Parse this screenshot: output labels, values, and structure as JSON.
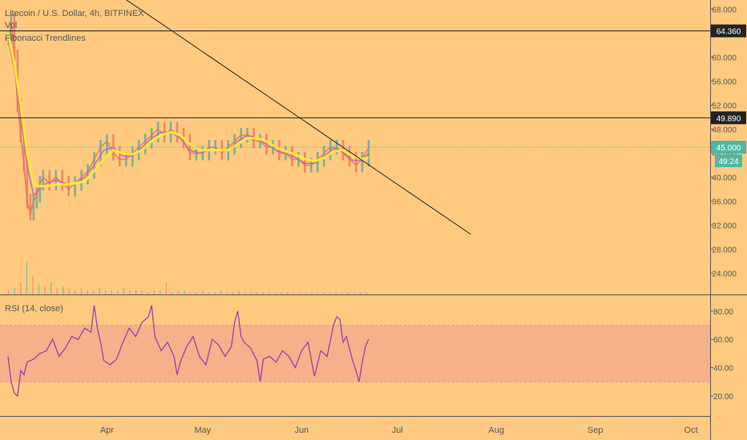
{
  "header": {
    "symbol_line": "Litecoin / U.S. Dollar, 4h, BITFINEX",
    "indicator_vol": "Vol",
    "indicator_fib": "Fibonacci Trendlines"
  },
  "colors": {
    "background": "#FFCA80",
    "candle_up": "#4FA8A0",
    "candle_down": "#E8735E",
    "ma_fast": "#C66BA6",
    "ma_slow": "#FFE838",
    "rsi_line": "#9C3FA8",
    "rsi_band": "#F6B18A",
    "last_price_label": "#4FB7A3",
    "horizontal_line_label": "#222222"
  },
  "chart_data": [
    {
      "type": "line",
      "name": "price",
      "title": "Litecoin / U.S. Dollar, 4h, BITFINEX",
      "x_axis_labels": [
        "Apr",
        "May",
        "Jun",
        "Jul",
        "Aug",
        "Sep",
        "Oct"
      ],
      "y_axis_ticks": [
        "68.000",
        "64.000",
        "60.000",
        "56.000",
        "52.000",
        "48.000",
        "44.000",
        "40.000",
        "36.000",
        "32.000",
        "28.000",
        "24.000"
      ],
      "ylim": [
        20.5,
        69.5
      ],
      "x_units": "days since Mar 1",
      "xlim": [
        0,
        220
      ],
      "price_points": [
        [
          0,
          62
        ],
        [
          1,
          66
        ],
        [
          2,
          60
        ],
        [
          3,
          52
        ],
        [
          4,
          47
        ],
        [
          5,
          42
        ],
        [
          6,
          36
        ],
        [
          7,
          34
        ],
        [
          8,
          36
        ],
        [
          9,
          37
        ],
        [
          10,
          39
        ],
        [
          11,
          40
        ],
        [
          13,
          39
        ],
        [
          15,
          40
        ],
        [
          17,
          39
        ],
        [
          19,
          38
        ],
        [
          21,
          39
        ],
        [
          23,
          40
        ],
        [
          25,
          41
        ],
        [
          27,
          43
        ],
        [
          29,
          45
        ],
        [
          31,
          46
        ],
        [
          33,
          44
        ],
        [
          35,
          43
        ],
        [
          37,
          43
        ],
        [
          39,
          44
        ],
        [
          41,
          45
        ],
        [
          43,
          46
        ],
        [
          45,
          47
        ],
        [
          47,
          48
        ],
        [
          49,
          47
        ],
        [
          51,
          48
        ],
        [
          53,
          47
        ],
        [
          55,
          46
        ],
        [
          57,
          44
        ],
        [
          59,
          44
        ],
        [
          61,
          44
        ],
        [
          63,
          45
        ],
        [
          65,
          45
        ],
        [
          67,
          44
        ],
        [
          69,
          45
        ],
        [
          71,
          46
        ],
        [
          73,
          47
        ],
        [
          75,
          47
        ],
        [
          77,
          46
        ],
        [
          79,
          46
        ],
        [
          81,
          45
        ],
        [
          83,
          45
        ],
        [
          85,
          44
        ],
        [
          87,
          44
        ],
        [
          89,
          43
        ],
        [
          91,
          43
        ],
        [
          93,
          42
        ],
        [
          95,
          42
        ],
        [
          97,
          43
        ],
        [
          99,
          44
        ],
        [
          101,
          45
        ],
        [
          103,
          45
        ],
        [
          105,
          44
        ],
        [
          107,
          43
        ],
        [
          109,
          42
        ],
        [
          111,
          43
        ],
        [
          113,
          45
        ]
      ],
      "ma_fast_points": [
        [
          0,
          63
        ],
        [
          2,
          58
        ],
        [
          4,
          50
        ],
        [
          6,
          42
        ],
        [
          8,
          37
        ],
        [
          10,
          38
        ],
        [
          12,
          39
        ],
        [
          15,
          39.5
        ],
        [
          18,
          39
        ],
        [
          21,
          39
        ],
        [
          24,
          40
        ],
        [
          27,
          42
        ],
        [
          30,
          44.5
        ],
        [
          33,
          45
        ],
        [
          36,
          43.5
        ],
        [
          39,
          43.5
        ],
        [
          42,
          45
        ],
        [
          45,
          46.5
        ],
        [
          48,
          47.5
        ],
        [
          51,
          47.5
        ],
        [
          54,
          46.5
        ],
        [
          57,
          44.5
        ],
        [
          60,
          44
        ],
        [
          63,
          44.5
        ],
        [
          66,
          44.5
        ],
        [
          69,
          44.5
        ],
        [
          72,
          46
        ],
        [
          75,
          47
        ],
        [
          78,
          46.5
        ],
        [
          81,
          45.5
        ],
        [
          84,
          44.5
        ],
        [
          87,
          44
        ],
        [
          90,
          43.3
        ],
        [
          93,
          42.3
        ],
        [
          96,
          42.3
        ],
        [
          99,
          43.5
        ],
        [
          102,
          44.8
        ],
        [
          105,
          44.2
        ],
        [
          108,
          42.8
        ],
        [
          111,
          42.8
        ],
        [
          113,
          44
        ]
      ],
      "ma_slow_points": [
        [
          0,
          64
        ],
        [
          2,
          59
        ],
        [
          4,
          52
        ],
        [
          6,
          44
        ],
        [
          8,
          39
        ],
        [
          10,
          38.5
        ],
        [
          12,
          38.5
        ],
        [
          15,
          38.8
        ],
        [
          18,
          38.8
        ],
        [
          21,
          39
        ],
        [
          24,
          39.3
        ],
        [
          27,
          41
        ],
        [
          30,
          43
        ],
        [
          33,
          44.5
        ],
        [
          36,
          44
        ],
        [
          39,
          43.8
        ],
        [
          42,
          44.5
        ],
        [
          45,
          46
        ],
        [
          48,
          47
        ],
        [
          51,
          47.5
        ],
        [
          54,
          47
        ],
        [
          57,
          45.5
        ],
        [
          60,
          44.5
        ],
        [
          63,
          44.5
        ],
        [
          66,
          44.5
        ],
        [
          69,
          44.5
        ],
        [
          72,
          45.5
        ],
        [
          75,
          46.5
        ],
        [
          78,
          46.5
        ],
        [
          81,
          46
        ],
        [
          84,
          45
        ],
        [
          87,
          44.3
        ],
        [
          90,
          43.8
        ],
        [
          93,
          43
        ],
        [
          96,
          42.7
        ],
        [
          99,
          43.2
        ],
        [
          102,
          44.3
        ],
        [
          105,
          44.5
        ],
        [
          108,
          43.5
        ],
        [
          111,
          43
        ],
        [
          113,
          43.3
        ]
      ],
      "horizontal_lines": [
        {
          "value": 64.36,
          "label": "64.360"
        },
        {
          "value": 49.89,
          "label": "49.890"
        }
      ],
      "trendline": [
        [
          -1,
          83.3
        ],
        [
          145,
          30.5
        ]
      ],
      "last_price": {
        "value": 45.0,
        "label": "45.000",
        "countdown": "49:24"
      }
    },
    {
      "type": "line",
      "name": "volume",
      "values": [
        2,
        3,
        6,
        16,
        9,
        5,
        4,
        6,
        3,
        4,
        3,
        2,
        3,
        2,
        2,
        3,
        2,
        2,
        2,
        3,
        2,
        2,
        2,
        1,
        2,
        2,
        6,
        1,
        2,
        2,
        1,
        1,
        2,
        1,
        1,
        2,
        1,
        1,
        2,
        1,
        1,
        1,
        1,
        1,
        1,
        1,
        1,
        1,
        1,
        1,
        1,
        1,
        1,
        1,
        1,
        1,
        1,
        1,
        1,
        1
      ]
    },
    {
      "type": "line",
      "name": "rsi",
      "title": "RSI (14, close)",
      "y_axis_ticks": [
        "80.00",
        "60.00",
        "40.00",
        "20.00"
      ],
      "ylim": [
        5.9,
        91.2
      ],
      "band": [
        30,
        70
      ],
      "points": [
        [
          0,
          48
        ],
        [
          1,
          30
        ],
        [
          2,
          22
        ],
        [
          3,
          20
        ],
        [
          4,
          38
        ],
        [
          5,
          35
        ],
        [
          6,
          44
        ],
        [
          8,
          46
        ],
        [
          10,
          50
        ],
        [
          12,
          52
        ],
        [
          14,
          60
        ],
        [
          16,
          48
        ],
        [
          18,
          54
        ],
        [
          20,
          62
        ],
        [
          22,
          60
        ],
        [
          24,
          68
        ],
        [
          26,
          65
        ],
        [
          27,
          84
        ],
        [
          28,
          68
        ],
        [
          29,
          58
        ],
        [
          30,
          45
        ],
        [
          32,
          42
        ],
        [
          34,
          46
        ],
        [
          36,
          58
        ],
        [
          38,
          68
        ],
        [
          40,
          62
        ],
        [
          42,
          72
        ],
        [
          44,
          76
        ],
        [
          45,
          84
        ],
        [
          46,
          62
        ],
        [
          48,
          52
        ],
        [
          50,
          58
        ],
        [
          52,
          48
        ],
        [
          53,
          35
        ],
        [
          54,
          44
        ],
        [
          56,
          55
        ],
        [
          58,
          62
        ],
        [
          60,
          48
        ],
        [
          62,
          42
        ],
        [
          64,
          60
        ],
        [
          66,
          56
        ],
        [
          68,
          48
        ],
        [
          70,
          55
        ],
        [
          71,
          72
        ],
        [
          72,
          80
        ],
        [
          73,
          62
        ],
        [
          74,
          58
        ],
        [
          76,
          54
        ],
        [
          78,
          45
        ],
        [
          79,
          30
        ],
        [
          80,
          46
        ],
        [
          82,
          48
        ],
        [
          84,
          44
        ],
        [
          86,
          52
        ],
        [
          88,
          48
        ],
        [
          90,
          40
        ],
        [
          92,
          52
        ],
        [
          94,
          58
        ],
        [
          96,
          34
        ],
        [
          98,
          52
        ],
        [
          100,
          48
        ],
        [
          102,
          70
        ],
        [
          103,
          76
        ],
        [
          104,
          74
        ],
        [
          105,
          58
        ],
        [
          106,
          62
        ],
        [
          108,
          45
        ],
        [
          109,
          38
        ],
        [
          110,
          30
        ],
        [
          111,
          44
        ],
        [
          112,
          55
        ],
        [
          113,
          60
        ]
      ]
    }
  ]
}
